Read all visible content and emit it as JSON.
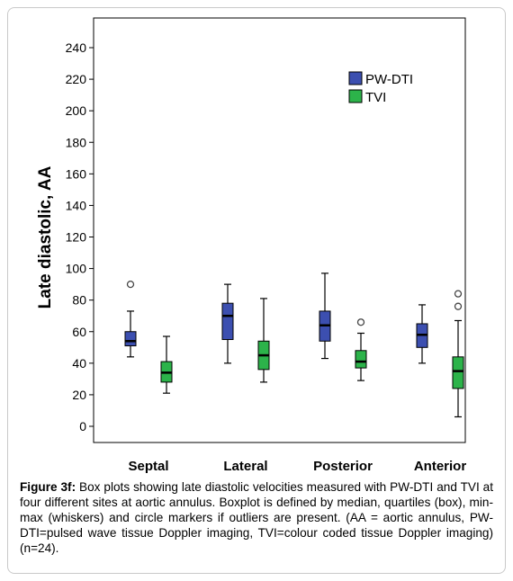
{
  "chart_data": {
    "type": "box",
    "ylabel": "Late diastolic,  AA",
    "xlabel": "",
    "ylim": [
      -10,
      250
    ],
    "yticks": [
      0,
      20,
      40,
      60,
      80,
      100,
      120,
      140,
      160,
      180,
      200,
      220,
      240
    ],
    "categories": [
      "Septal",
      "Lateral",
      "Posterior",
      "Anterior"
    ],
    "legend_position": "top-right",
    "series": [
      {
        "name": "PW-DTI",
        "color": "#3c4fb0",
        "boxes": [
          {
            "min": 44,
            "q1": 51,
            "median": 54,
            "q3": 60,
            "max": 73,
            "outliers": [
              90
            ]
          },
          {
            "min": 40,
            "q1": 55,
            "median": 70,
            "q3": 78,
            "max": 90,
            "outliers": []
          },
          {
            "min": 43,
            "q1": 54,
            "median": 64,
            "q3": 73,
            "max": 97,
            "outliers": []
          },
          {
            "min": 40,
            "q1": 50,
            "median": 58,
            "q3": 65,
            "max": 77,
            "outliers": []
          }
        ]
      },
      {
        "name": "TVI",
        "color": "#2cb34a",
        "boxes": [
          {
            "min": 21,
            "q1": 28,
            "median": 34,
            "q3": 41,
            "max": 57,
            "outliers": []
          },
          {
            "min": 28,
            "q1": 36,
            "median": 45,
            "q3": 54,
            "max": 81,
            "outliers": []
          },
          {
            "min": 29,
            "q1": 37,
            "median": 41,
            "q3": 48,
            "max": 59,
            "outliers": [
              66
            ]
          },
          {
            "min": 6,
            "q1": 24,
            "median": 35,
            "q3": 44,
            "max": 67,
            "outliers": [
              76,
              84
            ]
          }
        ]
      }
    ]
  },
  "caption": {
    "label": "Figure 3f:",
    "text": " Box plots showing late diastolic velocities measured with PW-DTI and TVI at four different sites at aortic annulus. Boxplot is defined by median, quartiles (box), min-max (whiskers) and circle markers if outliers are present. (AA = aortic annulus, PW-DTI=pulsed wave tissue Doppler imaging, TVI=colour coded tissue Doppler imaging) (n=24)."
  }
}
